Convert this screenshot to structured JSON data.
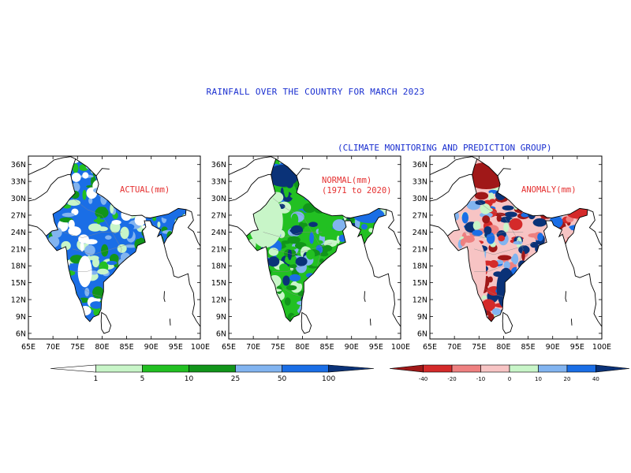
{
  "title": "RAINFALL OVER THE COUNTRY FOR MARCH 2023",
  "subtitle": "(CLIMATE MONITORING AND PREDICTION GROUP)",
  "panels": [
    {
      "label_line1": "ACTUAL(mm)",
      "label_line2": ""
    },
    {
      "label_line1": "NORMAL(mm)",
      "label_line2": "(1971 to 2020)"
    },
    {
      "label_line1": "ANOMALY(mm)",
      "label_line2": ""
    }
  ],
  "axes": {
    "lat_labels": [
      "36N",
      "33N",
      "30N",
      "27N",
      "24N",
      "21N",
      "18N",
      "15N",
      "12N",
      "9N",
      "6N"
    ],
    "lon_labels": [
      "65E",
      "70E",
      "75E",
      "80E",
      "85E",
      "90E",
      "95E",
      "100E"
    ],
    "lat_range": [
      5,
      37.5
    ],
    "lon_range": [
      65,
      100
    ]
  },
  "colorbar_rain": {
    "labels": [
      "1",
      "5",
      "10",
      "25",
      "50",
      "100"
    ],
    "colors": [
      "#ffffff",
      "#c8f5c8",
      "#22c022",
      "#11951a",
      "#82b4f0",
      "#1a6ee6",
      "#0a3278"
    ]
  },
  "colorbar_anomaly": {
    "labels": [
      "-40",
      "-20",
      "-10",
      "0",
      "10",
      "20",
      "40"
    ],
    "colors": [
      "#a01818",
      "#d42a2a",
      "#ee8080",
      "#f7c4c4",
      "#c8f5c8",
      "#82b4f0",
      "#1a6ee6",
      "#0a3278"
    ]
  },
  "map_colors": {
    "actual": [
      "#1a6ee6",
      "#82b4f0",
      "#22c022",
      "#11951a",
      "#c8f5c8",
      "#ffffff"
    ],
    "normal": [
      "#22c022",
      "#11951a",
      "#c8f5c8",
      "#82b4f0",
      "#1a6ee6",
      "#0a3278"
    ],
    "anomaly": [
      "#f7c4c4",
      "#82b4f0",
      "#1a6ee6",
      "#0a3278",
      "#c8f5c8",
      "#ee8080",
      "#d42a2a",
      "#a01818"
    ]
  }
}
